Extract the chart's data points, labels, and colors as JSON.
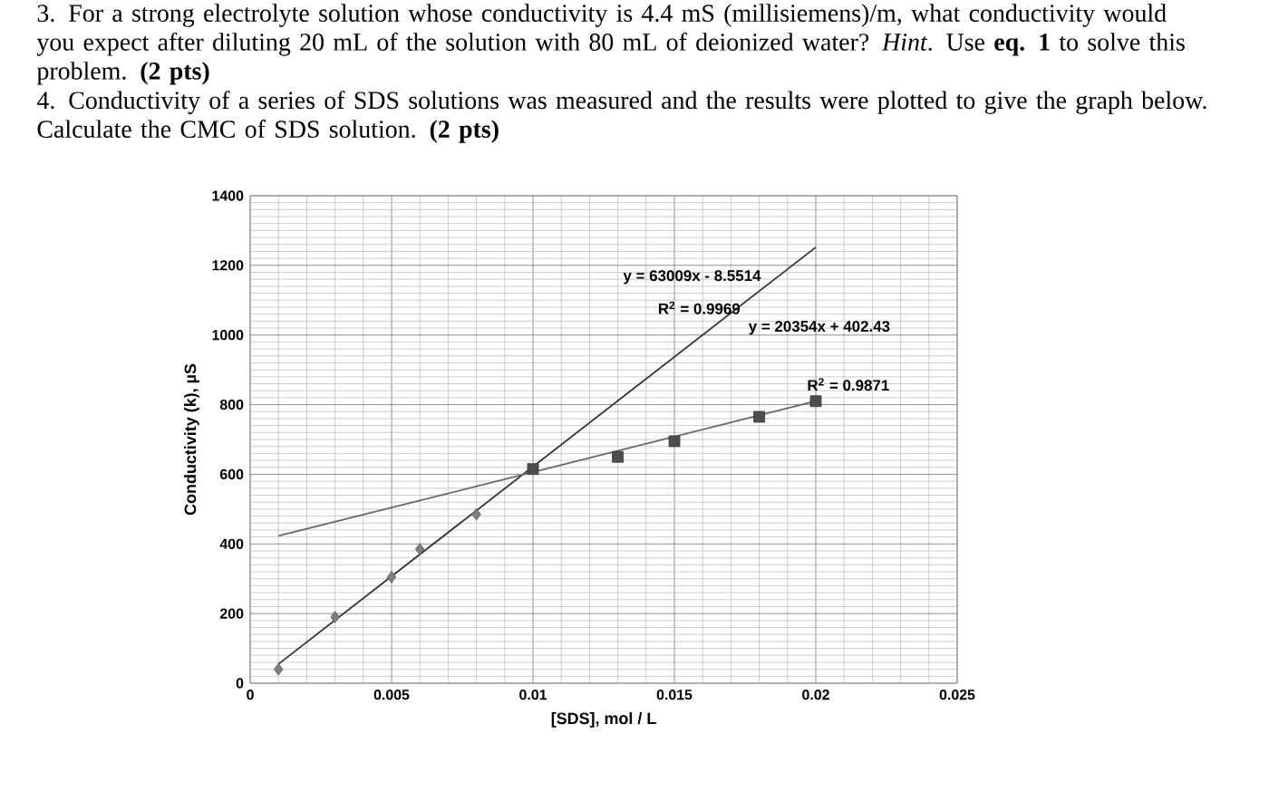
{
  "chart_data": {
    "type": "scatter",
    "xlabel": "[SDS], mol / L",
    "ylabel": "Conductivity (k), µS",
    "xlim": [
      0,
      0.025
    ],
    "ylim": [
      0,
      1400
    ],
    "xticks": [
      0,
      0.005,
      0.01,
      0.015,
      0.02,
      0.025
    ],
    "yticks": [
      0,
      200,
      400,
      600,
      800,
      1000,
      1200,
      1400
    ],
    "grid": true,
    "legend": false,
    "series": [
      {
        "type": "line",
        "color": "#333333",
        "marker": "none",
        "line_style": "solid",
        "x": [
          0.001,
          0.02
        ],
        "values": [
          55,
          1252
        ]
      },
      {
        "type": "line",
        "color": "#666666",
        "marker": "none",
        "line_style": "solid",
        "x": [
          0.001,
          0.02
        ],
        "values": [
          423,
          810
        ]
      },
      {
        "type": "scatter",
        "color": "#7f7f7f",
        "marker": "diamond",
        "x": [
          0.001,
          0.003,
          0.005,
          0.006,
          0.008
        ],
        "values": [
          40,
          190,
          305,
          385,
          485
        ]
      },
      {
        "type": "scatter",
        "color": "#4d4d4d",
        "marker": "square",
        "x": [
          0.01,
          0.013,
          0.015,
          0.018,
          0.02
        ],
        "values": [
          615,
          650,
          695,
          765,
          810
        ]
      }
    ],
    "annotations": [
      "3. For a strong electrolyte solution whose conductivity is 4.4 mS (millisiemens)/m, what conductivity would you expect after diluting 20 mL of the solution with 80 mL of deionized water? *Hint*. Use **eq. 1** to solve this problem. **(2 pts)**",
      "4. Conductivity of a series of SDS solutions was measured and the results were plotted to give the graph below. Calculate the CMC of SDS solution. **(2 pts)**",
      "y = 63009x - 8.5514",
      "R$^{2}$ = 0.9969",
      "y = 20354x + 402.43",
      "R$^{2}$ = 0.9871"
    ]
  }
}
